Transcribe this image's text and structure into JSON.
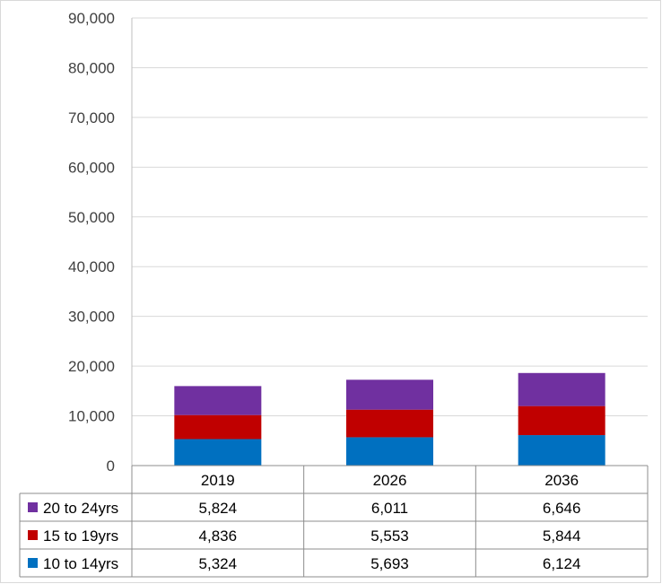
{
  "chart_data": {
    "type": "bar",
    "stacked": true,
    "title": "",
    "xlabel": "",
    "ylabel": "",
    "ylim": [
      0,
      90000
    ],
    "y_ticks": [
      "0",
      "10,000",
      "20,000",
      "30,000",
      "40,000",
      "50,000",
      "60,000",
      "70,000",
      "80,000",
      "90,000"
    ],
    "grid": true,
    "legend": "data table",
    "categories": [
      "2019",
      "2026",
      "2036"
    ],
    "series": [
      {
        "name": "10 to 14yrs",
        "values": [
          5324,
          5693,
          6124
        ],
        "labels": [
          "5,324",
          "5,693",
          "6,124"
        ],
        "color": "#0070c0"
      },
      {
        "name": "15 to 19yrs",
        "values": [
          4836,
          5553,
          5844
        ],
        "labels": [
          "4,836",
          "5,553",
          "5,844"
        ],
        "color": "#c00000"
      },
      {
        "name": "20 to 24yrs",
        "values": [
          5824,
          6011,
          6646
        ],
        "labels": [
          "5,824",
          "6,011",
          "6,646"
        ],
        "color": "#7030a0"
      }
    ]
  }
}
